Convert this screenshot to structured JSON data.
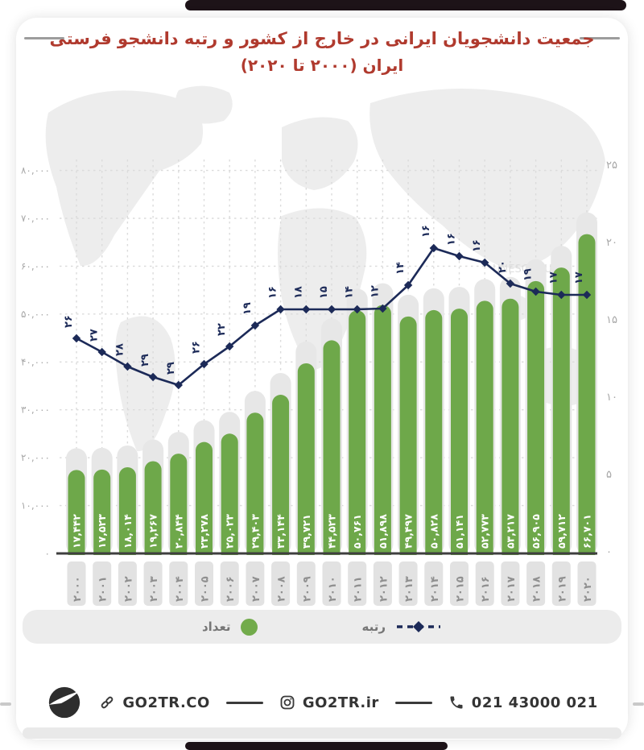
{
  "page": {
    "title_line1": "جمعیت دانشجویان ایرانی در خارج از کشور و رتبه دانشجو فرستی",
    "title_line2": "ایران (۲۰۰۰ تا ۲۰۲۰)",
    "title_color": "#b03a2e"
  },
  "chart_data": {
    "type": "bar+line",
    "title": "جمعیت دانشجویان ایرانی در خارج از کشور و رتبه دانشجو فرستی ایران (۲۰۰۰ تا ۲۰۲۰)",
    "categories": [
      2000,
      2001,
      2002,
      2003,
      2004,
      2005,
      2006,
      2007,
      2008,
      2009,
      2010,
      2011,
      2012,
      2013,
      2014,
      2015,
      2016,
      2017,
      2018,
      2019,
      2020
    ],
    "categories_fa": [
      "۲۰۰۰",
      "۲۰۰۱",
      "۲۰۰۲",
      "۲۰۰۳",
      "۲۰۰۴",
      "۲۰۰۵",
      "۲۰۰۶",
      "۲۰۰۷",
      "۲۰۰۸",
      "۲۰۰۹",
      "۲۰۱۰",
      "۲۰۱۱",
      "۲۰۱۲",
      "۲۰۱۳",
      "۲۰۱۴",
      "۲۰۱۵",
      "۲۰۱۶",
      "۲۰۱۷",
      "۲۰۱۸",
      "۲۰۱۹",
      "۲۰۲۰"
    ],
    "series": [
      {
        "name": "تعداد",
        "type": "bar",
        "color": "#6ea84a",
        "values": [
          17442,
          17523,
          18014,
          19267,
          20844,
          23278,
          25023,
          29403,
          33144,
          39721,
          44523,
          50761,
          51898,
          49497,
          50828,
          51141,
          52773,
          53217,
          56905,
          59712,
          66701
        ],
        "labels_fa": [
          "۱۷,۴۴۲",
          "۱۷,۵۲۳",
          "۱۸,۰۱۴",
          "۱۹,۲۶۷",
          "۲۰,۸۴۴",
          "۲۳,۲۷۸",
          "۲۵,۰۲۳",
          "۲۹,۴۰۳",
          "۳۳,۱۴۴",
          "۳۹,۷۲۱",
          "۴۴,۵۲۳",
          "۵۰,۷۶۱",
          "۵۱,۸۹۸",
          "۴۹,۴۹۷",
          "۵۰,۸۲۸",
          "۵۱,۱۴۱",
          "۵۲,۷۷۳",
          "۵۳,۲۱۷",
          "۵۶,۹۰۵",
          "۵۹,۷۱۲",
          "۶۶,۷۰۱"
        ],
        "axis": "left"
      },
      {
        "name": "رتبه",
        "type": "line",
        "color": "#1c2a58",
        "style": "solid line with diamond markers",
        "values": [
          26,
          27,
          28,
          29,
          29,
          26,
          22,
          19,
          16,
          18,
          15,
          14,
          12,
          14,
          16,
          16,
          16,
          20,
          19,
          17,
          17
        ],
        "labels_fa": [
          "۲۶",
          "۲۷",
          "۲۸",
          "۲۹",
          "۲۹",
          "۲۶",
          "۲۲",
          "۱۹",
          "۱۶",
          "۱۸",
          "۱۵",
          "۱۴",
          "۱۲",
          "۱۴",
          "۱۶",
          "۱۶",
          "۱۶",
          "۲۰",
          "۱۹",
          "۱۷",
          "۱۷"
        ],
        "axis": "right",
        "display_y": [
          420,
          437,
          455,
          468,
          478,
          452,
          430,
          404,
          384,
          384,
          384,
          384,
          383,
          354,
          308,
          318,
          326,
          352,
          362,
          366,
          366
        ]
      }
    ],
    "left_axis": {
      "ticks": [
        0,
        10000,
        20000,
        30000,
        40000,
        50000,
        60000,
        70000,
        80000
      ],
      "labels_fa": [
        "۰",
        "۱۰,۰۰۰",
        "۲۰,۰۰۰",
        "۳۰,۰۰۰",
        "۴۰,۰۰۰",
        "۵۰,۰۰۰",
        "۶۰,۰۰۰",
        "۷۰,۰۰۰",
        "۸۰,۰۰۰"
      ],
      "range": [
        0,
        80000
      ]
    },
    "right_axis": {
      "ticks": [
        0,
        5,
        10,
        15,
        20,
        25
      ],
      "labels_fa": [
        "۰",
        "۵",
        "۱۰",
        "۱۵",
        "۲۰",
        "۲۵"
      ],
      "range": [
        0,
        25
      ]
    },
    "grid": "dashed, vertical per year and horizontal per left tick",
    "legend_position": "bottom",
    "background": "faint light-gray world map",
    "watermark": "UNESCO (UIS)"
  },
  "legend": {
    "count_label": "تعداد",
    "rank_label": "رتبه",
    "count_color": "#72ab4b",
    "rank_color": "#1c2a58"
  },
  "footer": {
    "website": "GO2TR.CO",
    "instagram": "GO2TR.ir",
    "phone": "021 43000 021"
  }
}
